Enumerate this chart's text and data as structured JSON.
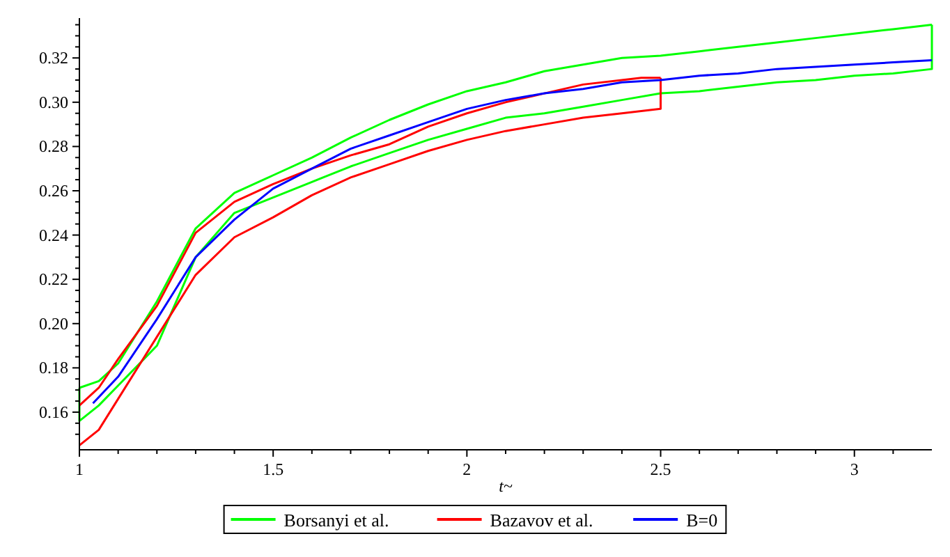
{
  "chart_data": {
    "type": "line",
    "xlabel": "t~",
    "xlim": [
      1,
      3.2
    ],
    "ylim": [
      0.143,
      0.338
    ],
    "legend": "bottom",
    "grid": false,
    "xticks": [
      1,
      {
        "value": 1.1,
        "label": null
      },
      {
        "value": 1.2,
        "label": null
      },
      {
        "value": 1.3,
        "label": null
      },
      {
        "value": 1.4,
        "label": null
      },
      1.5,
      {
        "value": 1.6,
        "label": null
      },
      {
        "value": 1.7,
        "label": null
      },
      {
        "value": 1.8,
        "label": null
      },
      {
        "value": 1.9,
        "label": null
      },
      2,
      {
        "value": 2.1,
        "label": null
      },
      {
        "value": 2.2,
        "label": null
      },
      {
        "value": 2.3,
        "label": null
      },
      {
        "value": 2.4,
        "label": null
      },
      2.5,
      {
        "value": 2.6,
        "label": null
      },
      {
        "value": 2.7,
        "label": null
      },
      {
        "value": 2.8,
        "label": null
      },
      {
        "value": 2.9,
        "label": null
      },
      3,
      {
        "value": 3.1,
        "label": null
      }
    ],
    "yticks": [
      {
        "value": 0.15,
        "label": null
      },
      {
        "value": 0.155,
        "label": null
      },
      {
        "value": 0.16,
        "label": "0.16"
      },
      {
        "value": 0.165,
        "label": null
      },
      {
        "value": 0.17,
        "label": null
      },
      {
        "value": 0.175,
        "label": null
      },
      {
        "value": 0.18,
        "label": "0.18"
      },
      {
        "value": 0.185,
        "label": null
      },
      {
        "value": 0.19,
        "label": null
      },
      {
        "value": 0.195,
        "label": null
      },
      {
        "value": 0.2,
        "label": "0.20"
      },
      {
        "value": 0.205,
        "label": null
      },
      {
        "value": 0.21,
        "label": null
      },
      {
        "value": 0.215,
        "label": null
      },
      {
        "value": 0.22,
        "label": "0.22"
      },
      {
        "value": 0.225,
        "label": null
      },
      {
        "value": 0.23,
        "label": null
      },
      {
        "value": 0.235,
        "label": null
      },
      {
        "value": 0.24,
        "label": "0.24"
      },
      {
        "value": 0.245,
        "label": null
      },
      {
        "value": 0.25,
        "label": null
      },
      {
        "value": 0.255,
        "label": null
      },
      {
        "value": 0.26,
        "label": "0.26"
      },
      {
        "value": 0.265,
        "label": null
      },
      {
        "value": 0.27,
        "label": null
      },
      {
        "value": 0.275,
        "label": null
      },
      {
        "value": 0.28,
        "label": "0.28"
      },
      {
        "value": 0.285,
        "label": null
      },
      {
        "value": 0.29,
        "label": null
      },
      {
        "value": 0.295,
        "label": null
      },
      {
        "value": 0.3,
        "label": "0.30"
      },
      {
        "value": 0.305,
        "label": null
      },
      {
        "value": 0.31,
        "label": null
      },
      {
        "value": 0.315,
        "label": null
      },
      {
        "value": 0.32,
        "label": "0.32"
      },
      {
        "value": 0.325,
        "label": null
      },
      {
        "value": 0.33,
        "label": null
      },
      {
        "value": 0.335,
        "label": null
      }
    ],
    "series": [
      {
        "name": "Borsanyi et al.",
        "color": "#00ff00",
        "x": [
          1,
          1.05,
          1.1,
          1.2,
          1.3,
          1.4,
          1.5,
          1.6,
          1.7,
          1.8,
          1.9,
          2,
          2.1,
          2.2,
          2.3,
          2.4,
          2.5,
          2.6,
          2.7,
          2.8,
          2.9,
          3,
          3.1,
          3.2
        ],
        "values": [
          0.171,
          0.174,
          0.182,
          0.21,
          0.243,
          0.259,
          0.267,
          0.275,
          0.284,
          0.292,
          0.299,
          0.305,
          0.309,
          0.314,
          0.317,
          0.32,
          0.321,
          0.323,
          0.325,
          0.327,
          0.329,
          0.331,
          0.333,
          0.335
        ]
      },
      {
        "color": "#00ff00",
        "x": [
          1,
          1,
          1.05,
          1.1,
          1.2,
          1.3,
          1.4,
          1.5,
          1.6,
          1.7,
          1.8,
          1.9,
          2,
          2.1,
          2.2,
          2.3,
          2.4,
          2.5,
          2.6,
          2.7,
          2.8,
          2.9,
          3,
          3.1,
          3.2,
          3.2
        ],
        "values": [
          0.171,
          0.156,
          0.163,
          0.172,
          0.19,
          0.23,
          0.25,
          0.257,
          0.264,
          0.271,
          0.277,
          0.283,
          0.288,
          0.293,
          0.295,
          0.298,
          0.301,
          0.304,
          0.305,
          0.307,
          0.309,
          0.31,
          0.312,
          0.313,
          0.315,
          0.335
        ]
      },
      {
        "name": "Bazavov et al.",
        "color": "#ff0000",
        "x": [
          1,
          1.05,
          1.1,
          1.2,
          1.3,
          1.4,
          1.5,
          1.6,
          1.7,
          1.8,
          1.9,
          2,
          2.1,
          2.2,
          2.3,
          2.4,
          2.45,
          2.5
        ],
        "values": [
          0.163,
          0.171,
          0.184,
          0.208,
          0.241,
          0.255,
          0.263,
          0.27,
          0.276,
          0.281,
          0.289,
          0.295,
          0.3,
          0.304,
          0.308,
          0.31,
          0.311,
          0.311
        ]
      },
      {
        "color": "#ff0000",
        "x": [
          1,
          1.05,
          1.1,
          1.2,
          1.3,
          1.4,
          1.5,
          1.6,
          1.7,
          1.8,
          1.9,
          2,
          2.1,
          2.2,
          2.3,
          2.4,
          2.45,
          2.5,
          2.5
        ],
        "values": [
          0.145,
          0.152,
          0.166,
          0.194,
          0.222,
          0.239,
          0.248,
          0.258,
          0.266,
          0.272,
          0.278,
          0.283,
          0.287,
          0.29,
          0.293,
          0.295,
          0.296,
          0.297,
          0.311
        ]
      },
      {
        "name": "B=0",
        "color": "#0000ff",
        "x": [
          1.035,
          1.1,
          1.2,
          1.3,
          1.4,
          1.5,
          1.6,
          1.7,
          1.8,
          1.9,
          2,
          2.1,
          2.2,
          2.3,
          2.4,
          2.5,
          2.6,
          2.7,
          2.8,
          2.9,
          3,
          3.1,
          3.2
        ],
        "values": [
          0.164,
          0.176,
          0.202,
          0.23,
          0.247,
          0.261,
          0.27,
          0.279,
          0.285,
          0.291,
          0.297,
          0.301,
          0.304,
          0.306,
          0.309,
          0.31,
          0.312,
          0.313,
          0.315,
          0.316,
          0.317,
          0.318,
          0.319
        ]
      }
    ]
  }
}
